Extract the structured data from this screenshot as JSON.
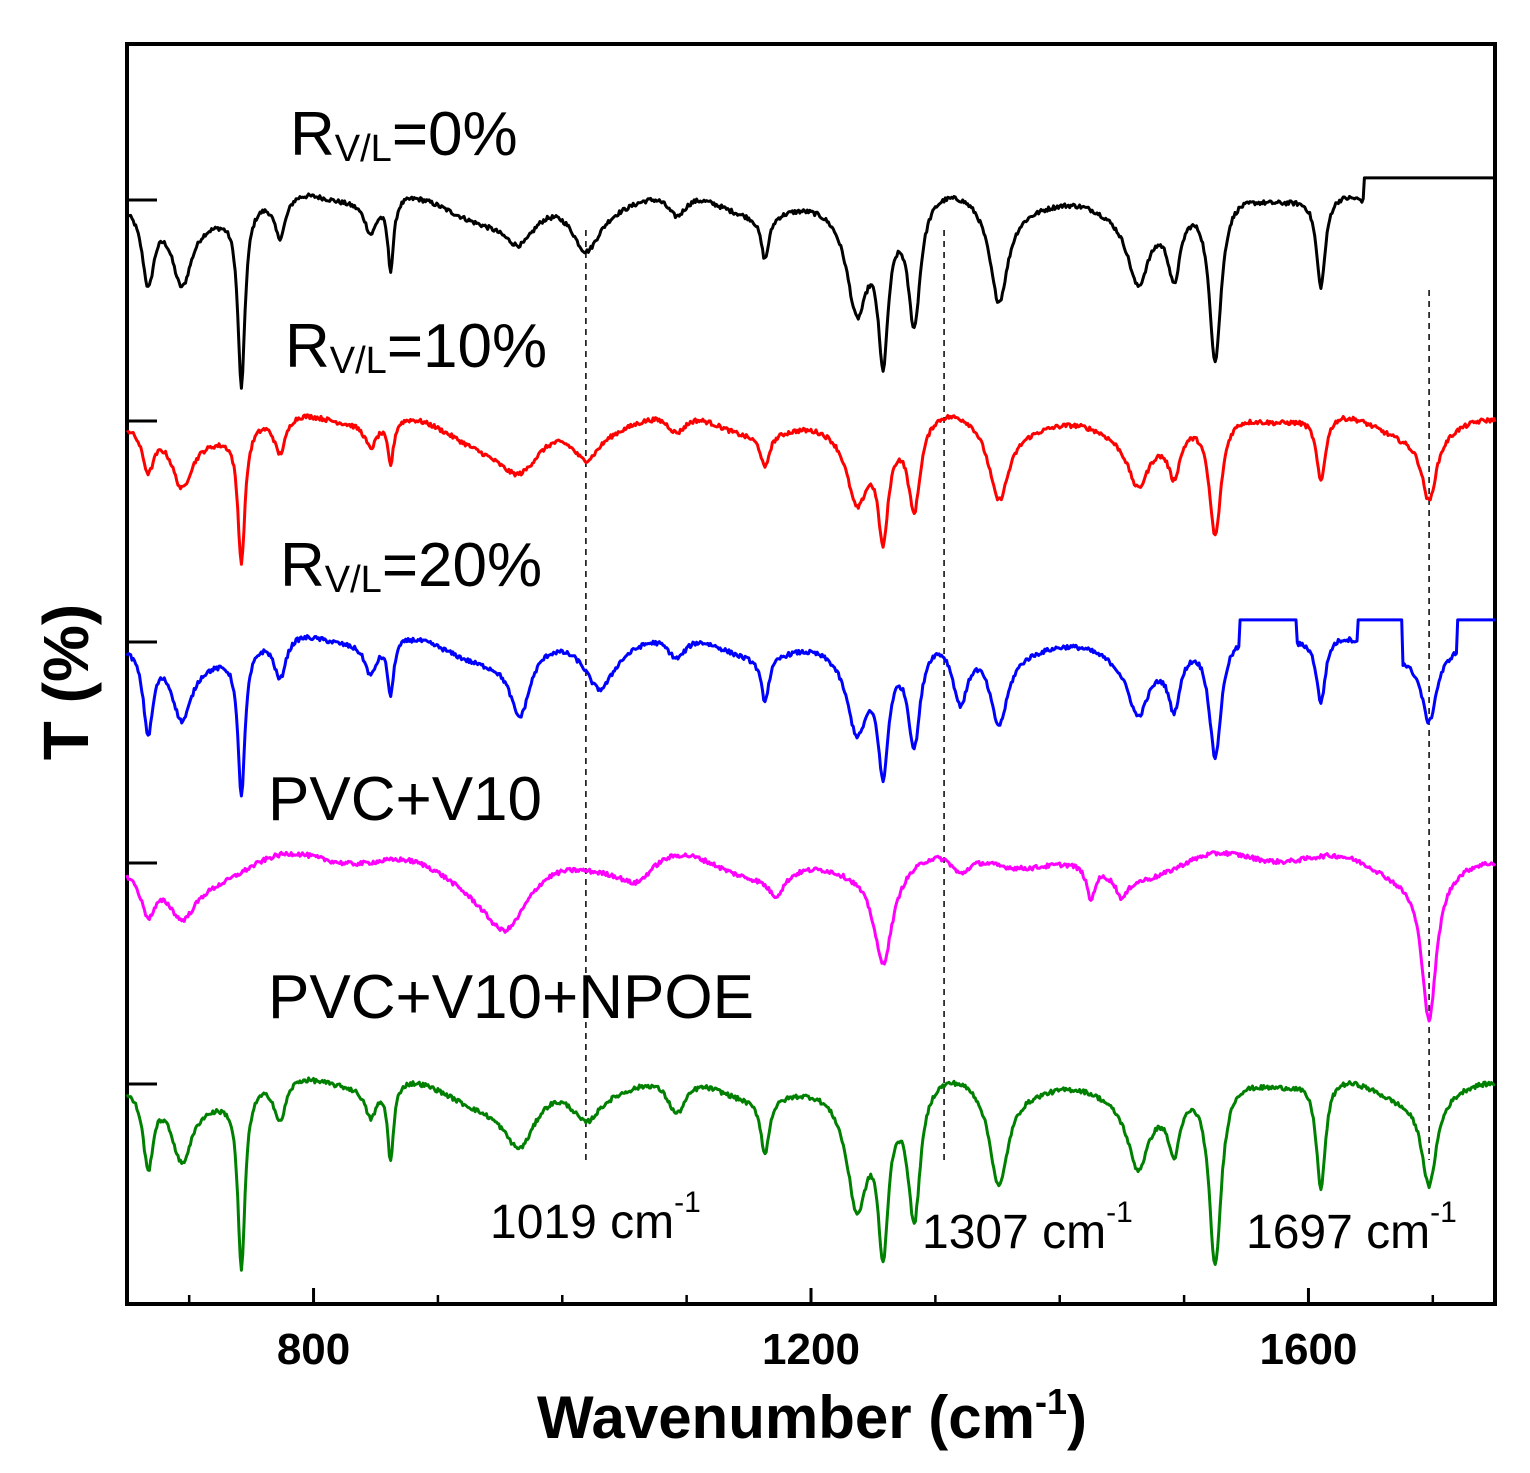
{
  "chart_data": {
    "type": "line",
    "title": "",
    "xlabel": "Wavenumber (cm",
    "xlabel_sup": "-1",
    "xlabel_close": ")",
    "ylabel": "T (%)",
    "xlim": [
      650,
      1750
    ],
    "xticks": [
      800,
      1200,
      1600
    ],
    "xtick_labels": [
      "800",
      "1200",
      "1600"
    ],
    "reference_lines": [
      {
        "x": 1019,
        "label": "1019 cm",
        "sup": "-1"
      },
      {
        "x": 1307,
        "label": "1307 cm",
        "sup": "-1"
      },
      {
        "x": 1697,
        "label": "1697 cm",
        "sup": "-1"
      }
    ],
    "series": [
      {
        "name_main": "R",
        "name_sub": "V/L",
        "name_rest": "=0%",
        "color": "#000000",
        "offset": 4.0,
        "peaks": [
          [
            667,
            0.35,
            6
          ],
          [
            694,
            0.33,
            10
          ],
          [
            742,
            0.8,
            3.5
          ],
          [
            773,
            0.2,
            6
          ],
          [
            846,
            0.15,
            6
          ],
          [
            862,
            0.32,
            3
          ],
          [
            966,
            0.16,
            16
          ],
          [
            1019,
            0.22,
            14
          ],
          [
            1092,
            0.12,
            10
          ],
          [
            1163,
            0.2,
            4
          ],
          [
            1237,
            0.45,
            10
          ],
          [
            1258,
            0.62,
            5
          ],
          [
            1283,
            0.55,
            6
          ],
          [
            1351,
            0.45,
            9
          ],
          [
            1463,
            0.3,
            10
          ],
          [
            1492,
            0.3,
            6
          ],
          [
            1525,
            0.75,
            6
          ],
          [
            1610,
            0.42,
            4.5
          ]
        ],
        "plateaus": [
          [
            1645,
            1750,
            0.1
          ]
        ]
      },
      {
        "name_main": "R",
        "name_sub": "V/L",
        "name_rest": "=10%",
        "color": "#ff0000",
        "offset": 3.0,
        "peaks": [
          [
            667,
            0.2,
            6
          ],
          [
            694,
            0.25,
            10
          ],
          [
            742,
            0.6,
            3.5
          ],
          [
            773,
            0.18,
            6
          ],
          [
            846,
            0.12,
            6
          ],
          [
            862,
            0.2,
            3
          ],
          [
            966,
            0.2,
            22
          ],
          [
            1019,
            0.15,
            14
          ],
          [
            1092,
            0.1,
            10
          ],
          [
            1163,
            0.15,
            4
          ],
          [
            1237,
            0.32,
            10
          ],
          [
            1258,
            0.45,
            5
          ],
          [
            1283,
            0.4,
            6
          ],
          [
            1351,
            0.35,
            10
          ],
          [
            1463,
            0.22,
            10
          ],
          [
            1492,
            0.2,
            6
          ],
          [
            1525,
            0.55,
            6
          ],
          [
            1610,
            0.3,
            4.5
          ],
          [
            1697,
            0.3,
            7
          ]
        ],
        "plateaus": []
      },
      {
        "name_main": "R",
        "name_sub": "V/L",
        "name_rest": "=20%",
        "color": "#0000ff",
        "offset": 2.0,
        "peaks": [
          [
            667,
            0.38,
            5
          ],
          [
            694,
            0.3,
            10
          ],
          [
            742,
            0.65,
            3.5
          ],
          [
            773,
            0.2,
            6
          ],
          [
            846,
            0.15,
            6
          ],
          [
            862,
            0.25,
            3
          ],
          [
            966,
            0.3,
            10
          ],
          [
            1030,
            0.2,
            14
          ],
          [
            1092,
            0.12,
            10
          ],
          [
            1163,
            0.2,
            4
          ],
          [
            1237,
            0.35,
            10
          ],
          [
            1258,
            0.5,
            5
          ],
          [
            1283,
            0.45,
            6
          ],
          [
            1320,
            0.3,
            8
          ],
          [
            1351,
            0.35,
            9
          ],
          [
            1463,
            0.25,
            10
          ],
          [
            1492,
            0.25,
            6
          ],
          [
            1525,
            0.55,
            6
          ],
          [
            1610,
            0.3,
            4.5
          ],
          [
            1697,
            0.3,
            7
          ]
        ],
        "plateaus": [
          [
            1545,
            1590,
            0.1
          ],
          [
            1640,
            1675,
            0.1
          ],
          [
            1720,
            1750,
            0.1
          ]
        ]
      },
      {
        "name_main": "PVC+V10",
        "name_sub": "",
        "name_rest": "",
        "color": "#ff00ff",
        "offset": 1.0,
        "peaks": [
          [
            667,
            0.2,
            8
          ],
          [
            694,
            0.2,
            14
          ],
          [
            955,
            0.25,
            22
          ],
          [
            1060,
            0.1,
            16
          ],
          [
            1172,
            0.1,
            8
          ],
          [
            1258,
            0.42,
            9
          ],
          [
            1320,
            0.1,
            10
          ],
          [
            1425,
            0.15,
            4
          ],
          [
            1450,
            0.1,
            6
          ],
          [
            1697,
            0.65,
            7
          ]
        ],
        "plateaus": []
      },
      {
        "name_main": "PVC+V10+NPOE",
        "name_sub": "",
        "name_rest": "",
        "color": "#008000",
        "offset": 0.0,
        "peaks": [
          [
            667,
            0.35,
            5
          ],
          [
            694,
            0.3,
            10
          ],
          [
            742,
            0.8,
            3.5
          ],
          [
            773,
            0.2,
            6
          ],
          [
            846,
            0.15,
            6
          ],
          [
            862,
            0.35,
            3
          ],
          [
            966,
            0.25,
            16
          ],
          [
            1019,
            0.15,
            14
          ],
          [
            1092,
            0.18,
            10
          ],
          [
            1163,
            0.25,
            4
          ],
          [
            1237,
            0.5,
            10
          ],
          [
            1258,
            0.65,
            5
          ],
          [
            1283,
            0.6,
            6
          ],
          [
            1351,
            0.45,
            9
          ],
          [
            1463,
            0.3,
            10
          ],
          [
            1492,
            0.25,
            6
          ],
          [
            1525,
            0.85,
            6
          ],
          [
            1610,
            0.5,
            4.5
          ],
          [
            1697,
            0.4,
            7
          ]
        ],
        "plateaus": []
      }
    ]
  }
}
